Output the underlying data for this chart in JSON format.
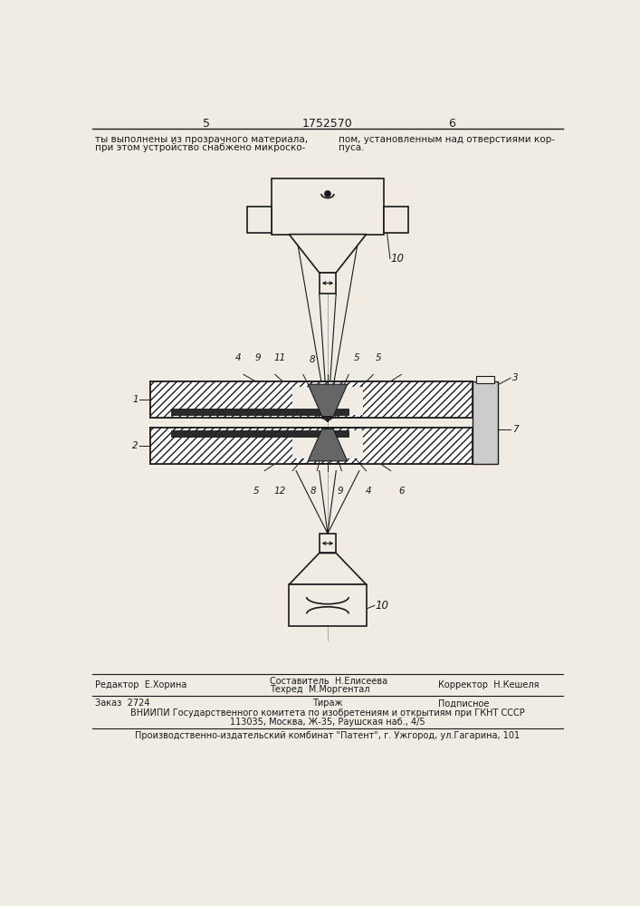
{
  "bg_color": "#f0ece4",
  "page_num_left": "5",
  "page_num_center": "1752570",
  "page_num_right": "6",
  "text_col1_line1": "ты выполнены из прозрачного материала,",
  "text_col1_line2": "при этом устройство снабжено микроско-",
  "text_col2_line1": "пом, установленным над отверстиями кор-",
  "text_col2_line2": "пуса.",
  "footer_editor": "Редактор  Е.Хорина",
  "footer_composer_label": "Составитель  Н.Елисеева",
  "footer_techred_label": "Техред  М.Моргентал",
  "footer_corrector": "Корректор  Н.Кешеля",
  "footer_order": "Заказ  2724",
  "footer_tirazh": "Тираж",
  "footer_podpisnoe": "Подписное",
  "footer_vniipи": "ВНИИПИ Государственного комитета по изобретениям и открытиям при ГКНТ СССР",
  "footer_address": "113035, Москва, Ж-35, Раушская наб., 4/5",
  "footer_publisher": "Производственно-издательский комбинат \"Патент\", г. Ужгород, ул.Гагарина, 101",
  "line_color": "#1a1a1a"
}
